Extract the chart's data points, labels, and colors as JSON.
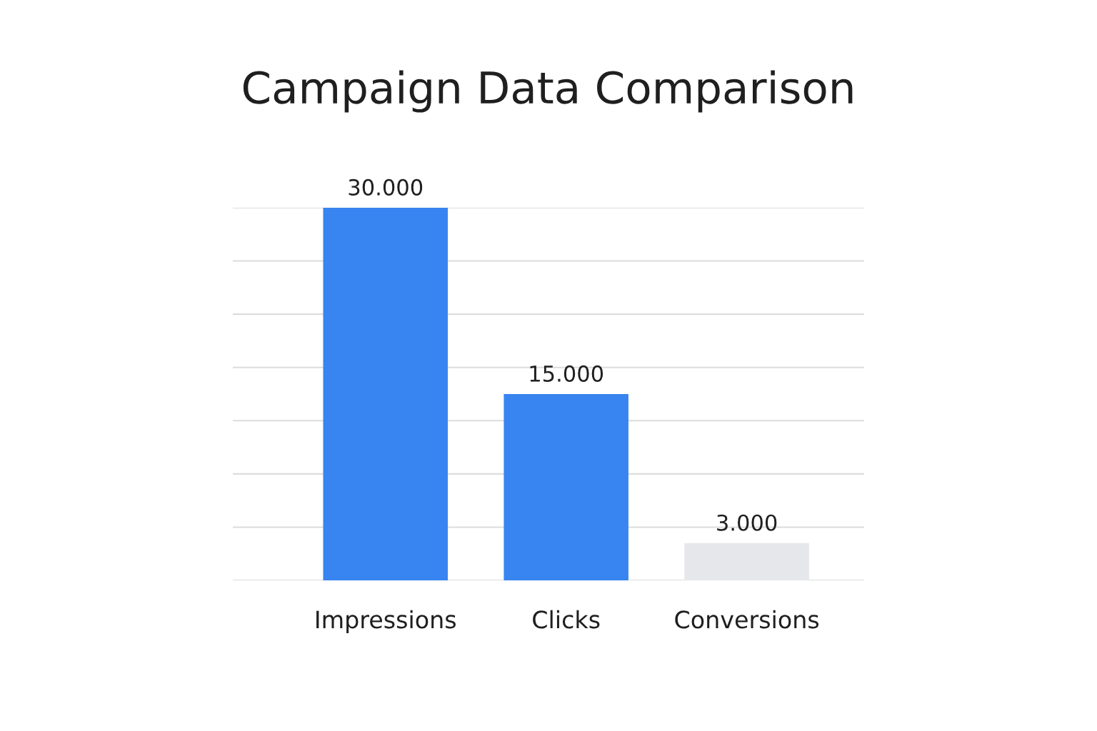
{
  "chart_data": {
    "type": "bar",
    "title": "Campaign Data Comparison",
    "categories": [
      "Impressions",
      "Clicks",
      "Conversions"
    ],
    "values": [
      30000,
      15000,
      3000
    ],
    "colors": [
      "#3884f0",
      "#3884f0",
      "#e5e7eb"
    ],
    "value_labels": [
      "30.000",
      "15.000",
      "3.000"
    ],
    "ylim": [
      0,
      30000
    ],
    "yticks": [
      {
        "value": 0,
        "label": null
      },
      {
        "value": 4286,
        "label": null
      },
      {
        "value": 8571,
        "label": null
      },
      {
        "value": 12857,
        "label": null
      },
      {
        "value": 17143,
        "label": null
      },
      {
        "value": 21429,
        "label": null
      },
      {
        "value": 25714,
        "label": null
      },
      {
        "value": 30000,
        "label": null
      }
    ],
    "grid": "y",
    "tick_labels": "x"
  }
}
